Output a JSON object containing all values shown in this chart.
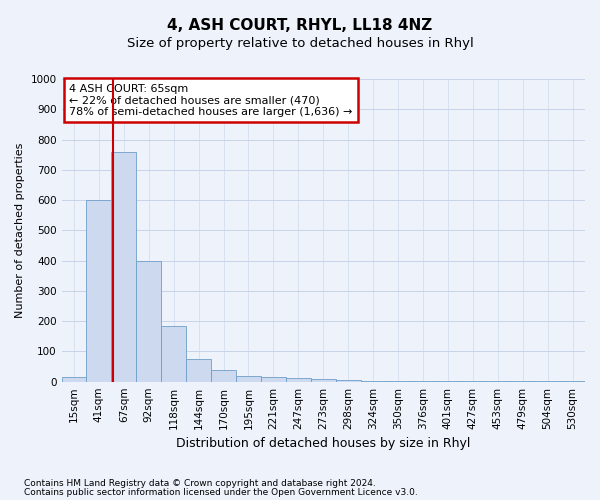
{
  "title": "4, ASH COURT, RHYL, LL18 4NZ",
  "subtitle": "Size of property relative to detached houses in Rhyl",
  "xlabel": "Distribution of detached houses by size in Rhyl",
  "ylabel": "Number of detached properties",
  "bar_labels": [
    "15sqm",
    "41sqm",
    "67sqm",
    "92sqm",
    "118sqm",
    "144sqm",
    "170sqm",
    "195sqm",
    "221sqm",
    "247sqm",
    "273sqm",
    "298sqm",
    "324sqm",
    "350sqm",
    "376sqm",
    "401sqm",
    "427sqm",
    "453sqm",
    "479sqm",
    "504sqm",
    "530sqm"
  ],
  "bar_values": [
    15,
    600,
    760,
    400,
    185,
    75,
    38,
    18,
    14,
    12,
    8,
    5,
    3,
    3,
    2,
    2,
    1,
    1,
    1,
    1,
    1
  ],
  "bar_color": "#ccd9ee",
  "bar_edgecolor": "#6e9ec8",
  "property_line_x": 1.58,
  "property_line_color": "#cc0000",
  "annotation_text": "4 ASH COURT: 65sqm\n← 22% of detached houses are smaller (470)\n78% of semi-detached houses are larger (1,636) →",
  "annotation_box_color": "#cc0000",
  "ylim": [
    0,
    1000
  ],
  "yticks": [
    0,
    100,
    200,
    300,
    400,
    500,
    600,
    700,
    800,
    900,
    1000
  ],
  "footer_line1": "Contains HM Land Registry data © Crown copyright and database right 2024.",
  "footer_line2": "Contains public sector information licensed under the Open Government Licence v3.0.",
  "plot_bg_color": "#edf2fb",
  "fig_bg_color": "#edf2fb",
  "grid_color": "#c8d4e8",
  "title_fontsize": 11,
  "subtitle_fontsize": 9.5,
  "xlabel_fontsize": 9,
  "ylabel_fontsize": 8,
  "tick_fontsize": 7.5,
  "annotation_fontsize": 8,
  "footer_fontsize": 6.5
}
